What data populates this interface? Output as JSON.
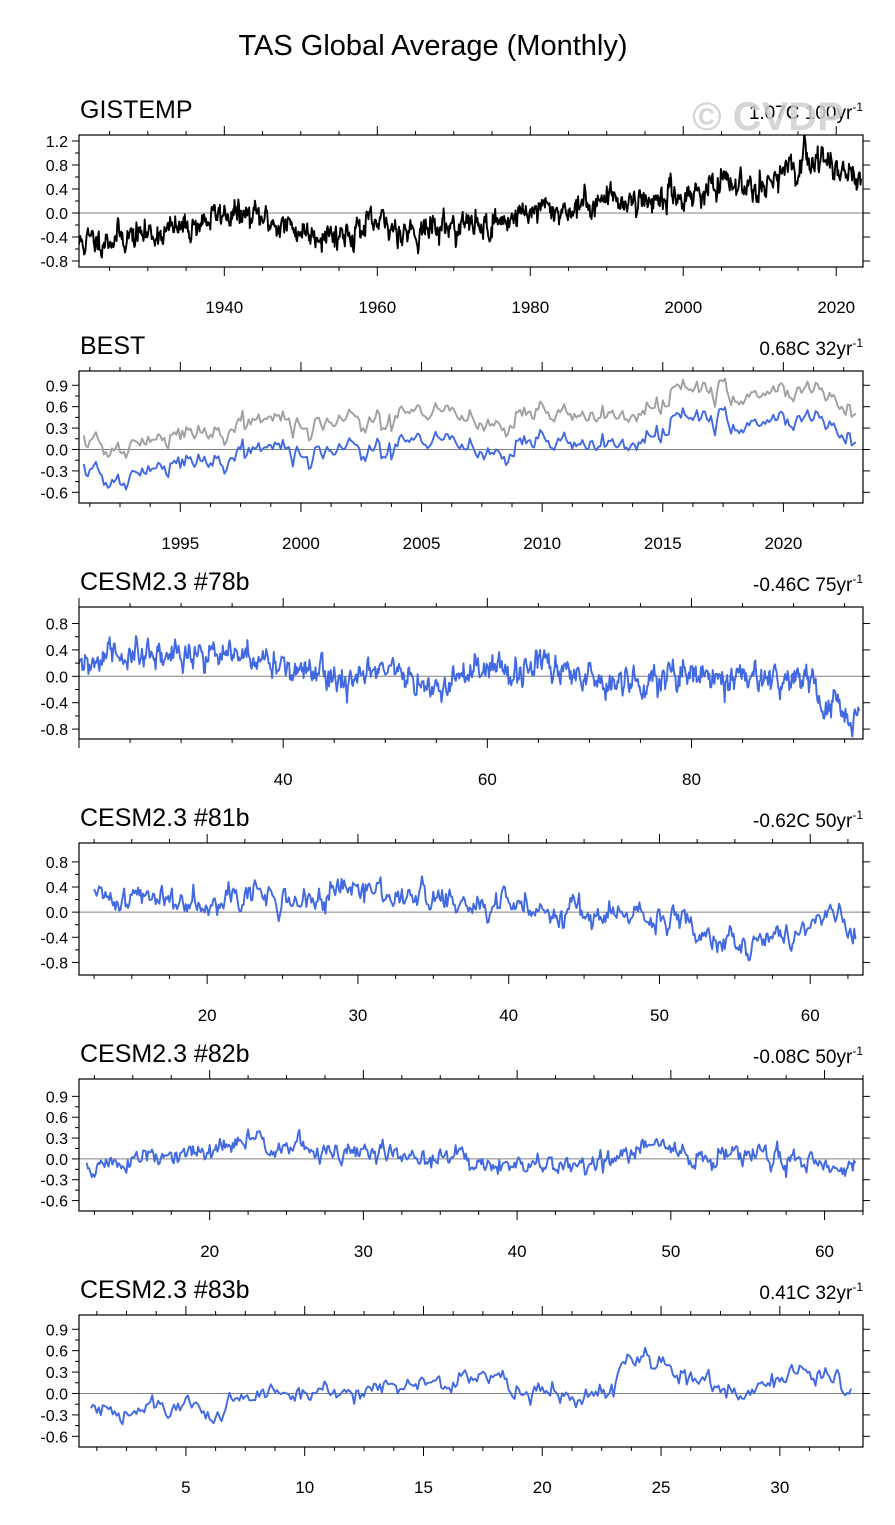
{
  "figure": {
    "title": "TAS Global Average (Monthly)",
    "watermark": "© CVDP",
    "colors": {
      "obs": "#000000",
      "model": "#4169e1",
      "best_offset": "#a0a0a0",
      "zero_line": "#808080"
    }
  },
  "chart_data": [
    {
      "type": "line",
      "title": "GISTEMP",
      "trend_value": "1.07C 100yr",
      "trend_exp": "-1",
      "xlim": [
        1921,
        2023.5
      ],
      "ylim": [
        -0.9,
        1.3
      ],
      "yticks": [
        -0.8,
        -0.4,
        0.0,
        0.4,
        0.8,
        1.2
      ],
      "ytick_labels": [
        "-0.8",
        "-0.4",
        "0.0",
        "0.4",
        "0.8",
        "1.2"
      ],
      "xticks": [
        1940,
        1960,
        1980,
        2000,
        2020
      ],
      "xtick_labels": [
        "1940",
        "1960",
        "1980",
        "2000",
        "2020"
      ],
      "series": [
        {
          "name": "GISTEMP",
          "color": "#000000",
          "anchors": [
            [
              1921,
              -0.5
            ],
            [
              1926,
              -0.4
            ],
            [
              1930,
              -0.35
            ],
            [
              1935,
              -0.25
            ],
            [
              1940,
              0.0
            ],
            [
              1945,
              -0.1
            ],
            [
              1950,
              -0.3
            ],
            [
              1955,
              -0.35
            ],
            [
              1960,
              -0.2
            ],
            [
              1965,
              -0.3
            ],
            [
              1970,
              -0.2
            ],
            [
              1975,
              -0.2
            ],
            [
              1980,
              0.05
            ],
            [
              1985,
              0.05
            ],
            [
              1990,
              0.25
            ],
            [
              1995,
              0.2
            ],
            [
              2000,
              0.3
            ],
            [
              2005,
              0.45
            ],
            [
              2010,
              0.5
            ],
            [
              2015,
              0.7
            ],
            [
              2016,
              0.95
            ],
            [
              2020,
              0.8
            ],
            [
              2023.3,
              0.6
            ]
          ],
          "noise": 0.1,
          "seed": 11
        }
      ]
    },
    {
      "type": "line",
      "title": "BEST",
      "trend_value": "0.68C 32yr",
      "trend_exp": "-1",
      "xlim": [
        1990.8,
        2023.3
      ],
      "ylim": [
        -0.75,
        1.1
      ],
      "yticks": [
        -0.6,
        -0.3,
        0.0,
        0.3,
        0.6,
        0.9
      ],
      "ytick_labels": [
        "-0.6",
        "-0.3",
        "0.0",
        "0.3",
        "0.6",
        "0.9"
      ],
      "xticks": [
        1995,
        2000,
        2005,
        2010,
        2015,
        2020
      ],
      "xtick_labels": [
        "1995",
        "2000",
        "2005",
        "2010",
        "2015",
        "2020"
      ],
      "series": [
        {
          "name": "BEST (offset)",
          "color": "#a0a0a0",
          "anchors": [
            [
              1991,
              0.15
            ],
            [
              1992.5,
              -0.05
            ],
            [
              1994,
              0.15
            ],
            [
              1996,
              0.25
            ],
            [
              1998,
              0.45
            ],
            [
              2000,
              0.3
            ],
            [
              2002,
              0.45
            ],
            [
              2005,
              0.45
            ],
            [
              2007,
              0.5
            ],
            [
              2008,
              0.3
            ],
            [
              2010,
              0.5
            ],
            [
              2012,
              0.45
            ],
            [
              2014,
              0.55
            ],
            [
              2016,
              0.9
            ],
            [
              2018,
              0.7
            ],
            [
              2020,
              0.85
            ],
            [
              2022,
              0.7
            ],
            [
              2023,
              0.65
            ]
          ],
          "noise": 0.07,
          "seed": 21
        },
        {
          "name": "BEST",
          "color": "#4169e1",
          "anchors": [
            [
              1991,
              -0.25
            ],
            [
              1992.5,
              -0.5
            ],
            [
              1994,
              -0.25
            ],
            [
              1996,
              -0.15
            ],
            [
              1998,
              0.05
            ],
            [
              2000,
              -0.1
            ],
            [
              2002,
              0.05
            ],
            [
              2005,
              0.05
            ],
            [
              2007,
              0.1
            ],
            [
              2008,
              -0.1
            ],
            [
              2010,
              0.1
            ],
            [
              2012,
              0.05
            ],
            [
              2014,
              0.15
            ],
            [
              2016,
              0.5
            ],
            [
              2018,
              0.3
            ],
            [
              2020,
              0.45
            ],
            [
              2022,
              0.3
            ],
            [
              2023,
              0.25
            ]
          ],
          "noise": 0.07,
          "seed": 21
        }
      ]
    },
    {
      "type": "line",
      "title": "CESM2.3 #78b",
      "trend_value": "-0.46C 75yr",
      "trend_exp": "-1",
      "xlim": [
        20,
        96.8
      ],
      "ylim": [
        -0.95,
        1.05
      ],
      "yticks": [
        -0.8,
        -0.4,
        0.0,
        0.4,
        0.8
      ],
      "ytick_labels": [
        "-0.8",
        "-0.4",
        "0.0",
        "0.4",
        "0.8"
      ],
      "xticks": [
        40,
        60,
        80
      ],
      "xtick_labels": [
        "40",
        "60",
        "80"
      ],
      "series": [
        {
          "name": "CESM2.3 #78b",
          "color": "#4169e1",
          "anchors": [
            [
              20,
              0.05
            ],
            [
              23,
              0.35
            ],
            [
              27,
              0.25
            ],
            [
              31,
              0.4
            ],
            [
              36,
              0.25
            ],
            [
              40,
              0.2
            ],
            [
              43,
              0.0
            ],
            [
              46,
              -0.05
            ],
            [
              50,
              0.05
            ],
            [
              55,
              -0.15
            ],
            [
              60,
              0.05
            ],
            [
              65,
              0.15
            ],
            [
              70,
              0.0
            ],
            [
              75,
              -0.05
            ],
            [
              80,
              0.1
            ],
            [
              84,
              -0.05
            ],
            [
              88,
              -0.05
            ],
            [
              92,
              -0.15
            ],
            [
              94,
              -0.35
            ],
            [
              95.5,
              -0.75
            ],
            [
              96.5,
              -0.45
            ]
          ],
          "noise": 0.1,
          "seed": 31
        }
      ]
    },
    {
      "type": "line",
      "title": "CESM2.3 #81b",
      "trend_value": "-0.62C 50yr",
      "trend_exp": "-1",
      "xlim": [
        11.5,
        63.5
      ],
      "ylim": [
        -1.0,
        1.1
      ],
      "yticks": [
        -0.8,
        -0.4,
        0.0,
        0.4,
        0.8
      ],
      "ytick_labels": [
        "-0.8",
        "-0.4",
        "0.0",
        "0.4",
        "0.8"
      ],
      "xticks": [
        20,
        30,
        40,
        50,
        60
      ],
      "xtick_labels": [
        "20",
        "30",
        "40",
        "50",
        "60"
      ],
      "series": [
        {
          "name": "CESM2.3 #81b",
          "color": "#4169e1",
          "anchors": [
            [
              12.5,
              0.2
            ],
            [
              15,
              0.25
            ],
            [
              18,
              0.2
            ],
            [
              22,
              0.3
            ],
            [
              26,
              0.15
            ],
            [
              30,
              0.35
            ],
            [
              34,
              0.25
            ],
            [
              38,
              0.05
            ],
            [
              40,
              0.1
            ],
            [
              44,
              0.05
            ],
            [
              48,
              -0.1
            ],
            [
              52,
              -0.2
            ],
            [
              55,
              -0.4
            ],
            [
              56,
              -0.6
            ],
            [
              58,
              -0.35
            ],
            [
              61,
              -0.15
            ],
            [
              62,
              0.0
            ],
            [
              63,
              -0.5
            ]
          ],
          "noise": 0.1,
          "seed": 41
        }
      ]
    },
    {
      "type": "line",
      "title": "CESM2.3 #82b",
      "trend_value": "-0.08C 50yr",
      "trend_exp": "-1",
      "xlim": [
        11.5,
        62.5
      ],
      "ylim": [
        -0.75,
        1.15
      ],
      "yticks": [
        -0.6,
        -0.3,
        0.0,
        0.3,
        0.6,
        0.9
      ],
      "ytick_labels": [
        "-0.6",
        "-0.3",
        "0.0",
        "0.3",
        "0.6",
        "0.9"
      ],
      "xticks": [
        20,
        30,
        40,
        50,
        60
      ],
      "xtick_labels": [
        "20",
        "30",
        "40",
        "50",
        "60"
      ],
      "series": [
        {
          "name": "CESM2.3 #82b",
          "color": "#4169e1",
          "anchors": [
            [
              12,
              -0.15
            ],
            [
              15,
              0.0
            ],
            [
              18,
              0.0
            ],
            [
              21,
              0.15
            ],
            [
              23,
              0.3
            ],
            [
              25,
              0.2
            ],
            [
              28,
              0.05
            ],
            [
              31,
              0.1
            ],
            [
              34,
              0.0
            ],
            [
              37,
              0.0
            ],
            [
              41,
              -0.15
            ],
            [
              44,
              -0.05
            ],
            [
              47,
              0.0
            ],
            [
              49,
              0.25
            ],
            [
              51,
              0.0
            ],
            [
              55,
              0.05
            ],
            [
              59,
              0.0
            ],
            [
              62,
              -0.15
            ]
          ],
          "noise": 0.07,
          "seed": 51
        }
      ]
    },
    {
      "type": "line",
      "title": "CESM2.3 #83b",
      "trend_value": "0.41C 32yr",
      "trend_exp": "-1",
      "xlim": [
        0.5,
        33.5
      ],
      "ylim": [
        -0.75,
        1.1
      ],
      "yticks": [
        -0.6,
        -0.3,
        0.0,
        0.3,
        0.6,
        0.9
      ],
      "ytick_labels": [
        "-0.6",
        "-0.3",
        "0.0",
        "0.3",
        "0.6",
        "0.9"
      ],
      "xticks": [
        5,
        10,
        15,
        20,
        25,
        30
      ],
      "xtick_labels": [
        "5",
        "10",
        "15",
        "20",
        "25",
        "30"
      ],
      "series": [
        {
          "name": "CESM2.3 #83b",
          "color": "#4169e1",
          "anchors": [
            [
              1,
              -0.25
            ],
            [
              3,
              -0.25
            ],
            [
              5,
              -0.15
            ],
            [
              6,
              -0.3
            ],
            [
              8,
              0.0
            ],
            [
              10,
              0.0
            ],
            [
              12,
              0.05
            ],
            [
              14,
              0.15
            ],
            [
              16,
              0.15
            ],
            [
              17,
              0.25
            ],
            [
              19,
              0.05
            ],
            [
              21,
              0.0
            ],
            [
              23,
              0.15
            ],
            [
              24,
              0.5
            ],
            [
              25,
              0.35
            ],
            [
              27,
              0.2
            ],
            [
              29,
              0.0
            ],
            [
              31,
              0.35
            ],
            [
              32,
              0.2
            ],
            [
              33,
              0.1
            ]
          ],
          "noise": 0.07,
          "seed": 61
        }
      ]
    }
  ]
}
